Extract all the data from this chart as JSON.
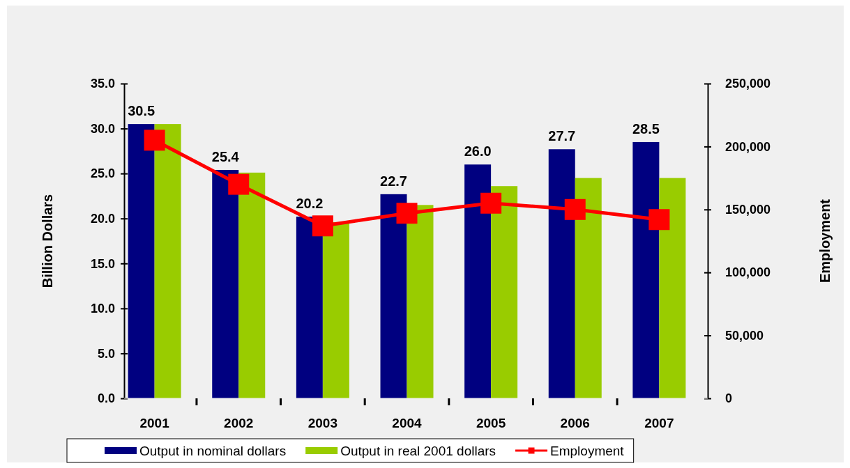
{
  "chart_data": {
    "type": "bar",
    "ylabel": "Billion Dollars",
    "y2label": "Employment",
    "categories": [
      "2001",
      "2002",
      "2003",
      "2004",
      "2005",
      "2006",
      "2007"
    ],
    "series": [
      {
        "name": "Output in nominal dollars",
        "color": "#000080",
        "values": [
          30.5,
          25.4,
          20.2,
          22.7,
          26.0,
          27.7,
          28.5
        ],
        "value_labels": [
          "30.5",
          "25.4",
          "20.2",
          "22.7",
          "26.0",
          "27.7",
          "28.5"
        ]
      },
      {
        "name": "Output in real 2001 dollars",
        "color": "#99cc00",
        "values": [
          30.5,
          25.1,
          19.6,
          21.5,
          23.6,
          24.5,
          24.5
        ]
      },
      {
        "name": "Employment",
        "type": "line",
        "axis": "y2",
        "color": "#ff0000",
        "marker": "square",
        "values": [
          205000,
          170000,
          137000,
          147000,
          155000,
          150000,
          142000
        ]
      }
    ],
    "ylim": [
      0,
      35
    ],
    "yticks": [
      {
        "value": 0,
        "label": "0.0"
      },
      {
        "value": 5,
        "label": "5.0"
      },
      {
        "value": 10,
        "label": "10.0"
      },
      {
        "value": 15,
        "label": "15.0"
      },
      {
        "value": 20,
        "label": "20.0"
      },
      {
        "value": 25,
        "label": "25.0"
      },
      {
        "value": 30,
        "label": "30.0"
      },
      {
        "value": 35,
        "label": "35.0"
      }
    ],
    "y2lim": [
      0,
      250000
    ],
    "y2ticks": [
      0,
      {
        "value": 50000,
        "label": "50,000"
      },
      {
        "value": 100000,
        "label": "100,000"
      },
      {
        "value": 150000,
        "label": "150,000"
      },
      {
        "value": 200000,
        "label": "200,000"
      },
      {
        "value": 250000,
        "label": "250,000"
      }
    ],
    "legend": "bottom",
    "grid": false
  }
}
